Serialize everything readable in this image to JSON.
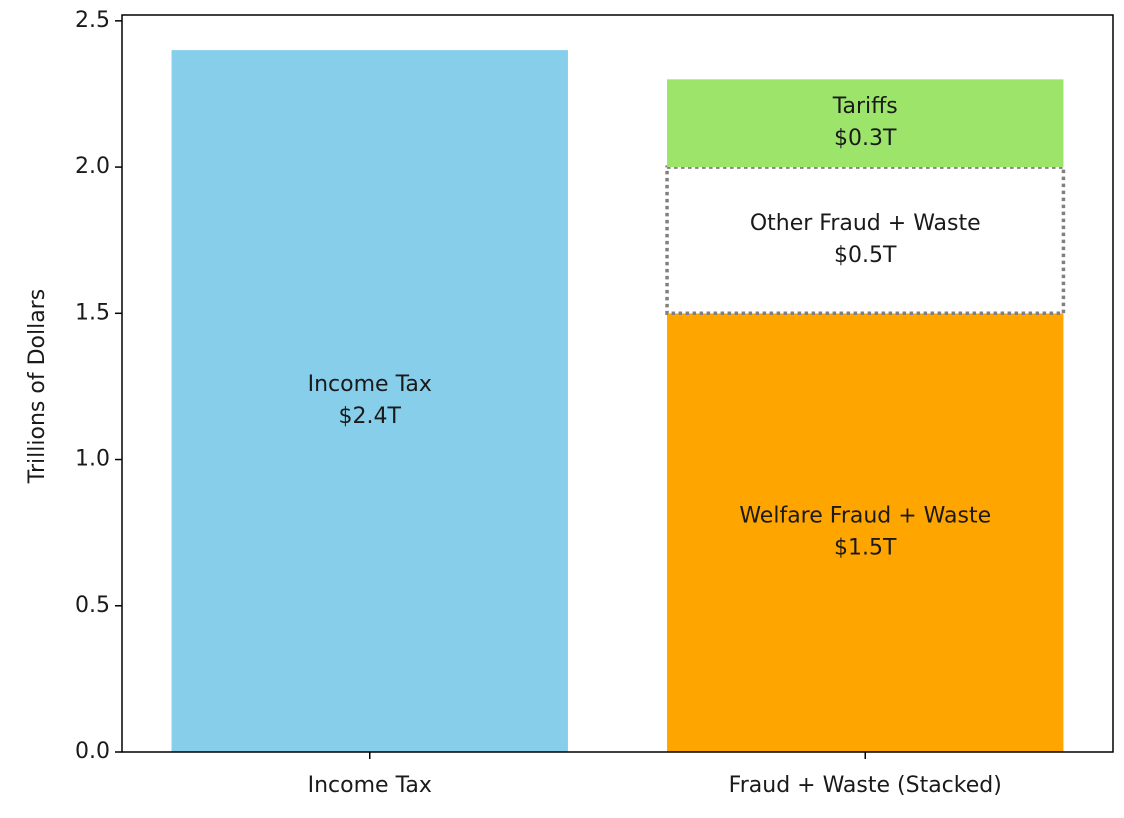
{
  "chart_data": {
    "type": "stacked_bar",
    "y_label": "Trillions of Dollars",
    "categories": [
      "Income Tax",
      "Fraud + Waste (Stacked)"
    ],
    "series": [
      {
        "name": "Income Tax",
        "color": "#87ceeb",
        "values": [
          2.4,
          null
        ],
        "value_labels": [
          "$2.4T",
          null
        ]
      },
      {
        "name": "Welfare Fraud + Waste",
        "color": "#ffa500",
        "values": [
          null,
          1.5
        ],
        "value_labels": [
          null,
          "$1.5T"
        ]
      },
      {
        "name": "Other Fraud + Waste",
        "color": "#ffffff",
        "edgecolor": "#808080",
        "linestyle": "dotted",
        "values": [
          null,
          0.5
        ],
        "value_labels": [
          null,
          "$0.5T"
        ]
      },
      {
        "name": "Tariffs",
        "color": "#9de56a",
        "values": [
          null,
          0.3
        ],
        "value_labels": [
          null,
          "$0.3T"
        ]
      }
    ],
    "ylim": [
      0,
      2.52
    ],
    "yticks": [
      {
        "value": 0,
        "label": "0.0"
      },
      0.5,
      {
        "value": 1,
        "label": "1.0"
      },
      1.5,
      {
        "value": 2,
        "label": "2.0"
      },
      2.5
    ]
  }
}
